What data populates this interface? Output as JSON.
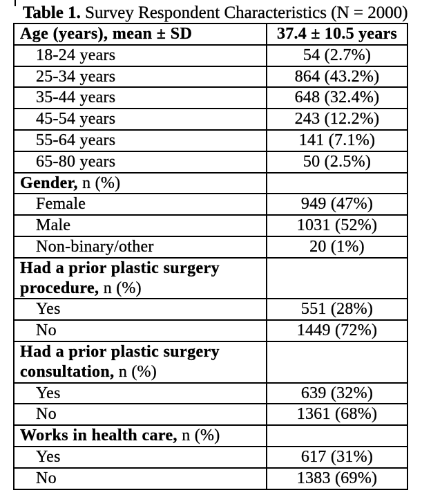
{
  "title": {
    "bold": "Table 1.",
    "rest": " Survey Respondent Characteristics (N = 2000)"
  },
  "table": {
    "rows": [
      {
        "label_bold": "Age (years), mean ± SD",
        "label": "",
        "value": "37.4 ± 10.5 years",
        "value_bold": true,
        "indent": false
      },
      {
        "label_bold": "",
        "label": "18-24 years",
        "value": "54 (2.7%)",
        "value_bold": false,
        "indent": true
      },
      {
        "label_bold": "",
        "label": "25-34 years",
        "value": "864 (43.2%)",
        "value_bold": false,
        "indent": true
      },
      {
        "label_bold": "",
        "label": "35-44 years",
        "value": "648 (32.4%)",
        "value_bold": false,
        "indent": true
      },
      {
        "label_bold": "",
        "label": "45-54 years",
        "value": "243 (12.2%)",
        "value_bold": false,
        "indent": true
      },
      {
        "label_bold": "",
        "label": "55-64 years",
        "value": "141 (7.1%)",
        "value_bold": false,
        "indent": true
      },
      {
        "label_bold": "",
        "label": "65-80 years",
        "value": "50 (2.5%)",
        "value_bold": false,
        "indent": true
      },
      {
        "label_bold": "Gender,",
        "label": " n (%)",
        "value": "",
        "value_bold": false,
        "indent": false
      },
      {
        "label_bold": "",
        "label": "Female",
        "value": "949 (47%)",
        "value_bold": false,
        "indent": true
      },
      {
        "label_bold": "",
        "label": "Male",
        "value": "1031 (52%)",
        "value_bold": false,
        "indent": true
      },
      {
        "label_bold": "",
        "label": "Non-binary/other",
        "value": "20 (1%)",
        "value_bold": false,
        "indent": true
      },
      {
        "label_bold": "Had a prior plastic surgery procedure,",
        "label": " n (%)",
        "value": "",
        "value_bold": false,
        "indent": false
      },
      {
        "label_bold": "",
        "label": "Yes",
        "value": "551 (28%)",
        "value_bold": false,
        "indent": true
      },
      {
        "label_bold": "",
        "label": "No",
        "value": "1449 (72%)",
        "value_bold": false,
        "indent": true
      },
      {
        "label_bold": "Had a prior plastic surgery consultation,",
        "label": " n (%)",
        "value": "",
        "value_bold": false,
        "indent": false
      },
      {
        "label_bold": "",
        "label": "Yes",
        "value": "639 (32%)",
        "value_bold": false,
        "indent": true
      },
      {
        "label_bold": "",
        "label": "No",
        "value": "1361 (68%)",
        "value_bold": false,
        "indent": true
      },
      {
        "label_bold": "Works in health care,",
        "label": " n (%)",
        "value": "",
        "value_bold": false,
        "indent": false
      },
      {
        "label_bold": "",
        "label": "Yes",
        "value": "617 (31%)",
        "value_bold": false,
        "indent": true
      },
      {
        "label_bold": "",
        "label": "No",
        "value": "1383 (69%)",
        "value_bold": false,
        "indent": true
      }
    ]
  }
}
